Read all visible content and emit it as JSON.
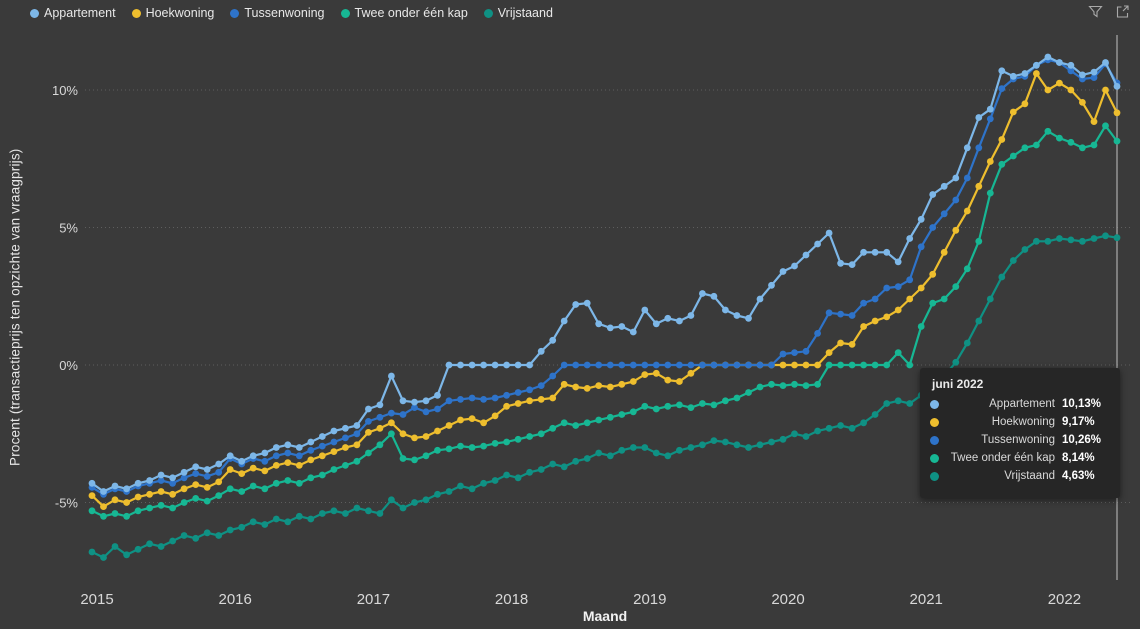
{
  "theme": {
    "background": "#3a3a3a",
    "grid_color": "#5e5e5e",
    "axis_text_color": "#d8d8d8",
    "crosshair_color": "#c2c2c2",
    "tooltip_background": "#262626"
  },
  "visual_header": {
    "icons": [
      {
        "name": "filter-icon"
      },
      {
        "name": "focus-mode-icon"
      }
    ]
  },
  "legend": {
    "items": [
      {
        "label": "Appartement",
        "color": "#7db7e8"
      },
      {
        "label": "Hoekwoning",
        "color": "#eebe2e"
      },
      {
        "label": "Tussenwoning",
        "color": "#2e73c9"
      },
      {
        "label": "Twee onder één kap",
        "color": "#17b794"
      },
      {
        "label": "Vrijstaand",
        "color": "#0f9184"
      }
    ]
  },
  "chart_data": {
    "type": "line",
    "xlabel": "Maand",
    "ylabel": "Procent (transactieprijs ten opzichte van vraagprijs)",
    "x_unit": "month",
    "x_start": "2015-01",
    "x_end": "2022-06",
    "x_tick_labels": [
      "2015",
      "2016",
      "2017",
      "2018",
      "2019",
      "2020",
      "2021",
      "2022"
    ],
    "y_ticks": [
      {
        "value": 10,
        "label": "10%"
      },
      {
        "value": 5,
        "label": "5%"
      },
      {
        "value": 0,
        "label": "0%"
      },
      {
        "value": -5,
        "label": "-5%"
      }
    ],
    "ylim": [
      -7.8,
      12.0
    ],
    "grid": "dotted-horizontal",
    "legend_position": "top-left",
    "marker": "circle",
    "series": [
      {
        "name": "Appartement",
        "color": "#7db7e8",
        "values": [
          -4.3,
          -4.6,
          -4.4,
          -4.5,
          -4.3,
          -4.2,
          -4.0,
          -4.1,
          -3.9,
          -3.7,
          -3.8,
          -3.6,
          -3.3,
          -3.5,
          -3.3,
          -3.2,
          -3.0,
          -2.9,
          -3.0,
          -2.8,
          -2.6,
          -2.4,
          -2.3,
          -2.2,
          -1.6,
          -1.45,
          -0.4,
          -1.3,
          -1.35,
          -1.3,
          -1.1,
          0,
          0,
          0,
          0,
          0,
          0,
          0,
          0,
          0.5,
          0.9,
          1.6,
          2.2,
          2.25,
          1.5,
          1.35,
          1.4,
          1.2,
          2.0,
          1.5,
          1.7,
          1.6,
          1.8,
          2.6,
          2.5,
          2.0,
          1.8,
          1.7,
          2.4,
          2.9,
          3.4,
          3.6,
          4.0,
          4.4,
          4.8,
          3.7,
          3.65,
          4.1,
          4.1,
          4.1,
          3.75,
          4.6,
          5.3,
          6.2,
          6.5,
          6.8,
          7.9,
          9.0,
          9.3,
          10.7,
          10.5,
          10.6,
          10.9,
          11.2,
          11.0,
          10.9,
          10.55,
          10.65,
          11.0,
          10.13
        ]
      },
      {
        "name": "Hoekwoning",
        "color": "#eebe2e",
        "values": [
          -4.75,
          -5.15,
          -4.9,
          -5.0,
          -4.8,
          -4.7,
          -4.6,
          -4.7,
          -4.5,
          -4.35,
          -4.45,
          -4.25,
          -3.8,
          -3.95,
          -3.75,
          -3.85,
          -3.65,
          -3.55,
          -3.65,
          -3.45,
          -3.3,
          -3.15,
          -3.0,
          -2.9,
          -2.45,
          -2.3,
          -2.1,
          -2.5,
          -2.65,
          -2.6,
          -2.4,
          -2.2,
          -2.0,
          -1.95,
          -2.1,
          -1.85,
          -1.5,
          -1.4,
          -1.3,
          -1.25,
          -1.2,
          -0.7,
          -0.8,
          -0.85,
          -0.75,
          -0.8,
          -0.7,
          -0.6,
          -0.35,
          -0.3,
          -0.55,
          -0.6,
          -0.3,
          0,
          0,
          0,
          0,
          0,
          0,
          0,
          0,
          0,
          0,
          0,
          0.45,
          0.8,
          0.75,
          1.4,
          1.6,
          1.75,
          2.0,
          2.4,
          2.8,
          3.3,
          4.1,
          4.9,
          5.6,
          6.5,
          7.4,
          8.2,
          9.2,
          9.5,
          10.6,
          10.0,
          10.25,
          10.0,
          9.55,
          8.85,
          10.0,
          9.17
        ]
      },
      {
        "name": "Tussenwoning",
        "color": "#2e73c9",
        "values": [
          -4.45,
          -4.7,
          -4.5,
          -4.6,
          -4.4,
          -4.3,
          -4.2,
          -4.3,
          -4.1,
          -3.95,
          -4.05,
          -3.9,
          -3.4,
          -3.6,
          -3.4,
          -3.5,
          -3.3,
          -3.2,
          -3.3,
          -3.1,
          -2.95,
          -2.8,
          -2.65,
          -2.5,
          -2.05,
          -1.9,
          -1.75,
          -1.8,
          -1.55,
          -1.7,
          -1.6,
          -1.3,
          -1.25,
          -1.2,
          -1.25,
          -1.2,
          -1.1,
          -1.0,
          -0.9,
          -0.75,
          -0.4,
          0,
          0,
          0,
          0,
          0,
          0,
          0,
          0,
          0,
          0,
          0,
          0,
          0,
          0,
          0,
          0,
          0,
          0,
          0,
          0.4,
          0.45,
          0.5,
          1.15,
          1.9,
          1.85,
          1.8,
          2.25,
          2.4,
          2.8,
          2.85,
          3.1,
          4.3,
          5.0,
          5.5,
          6.0,
          6.8,
          7.9,
          8.95,
          10.05,
          10.4,
          10.5,
          10.9,
          11.1,
          11.0,
          10.7,
          10.4,
          10.45,
          10.95,
          10.26
        ]
      },
      {
        "name": "Twee onder één kap",
        "color": "#17b794",
        "values": [
          -5.3,
          -5.5,
          -5.4,
          -5.5,
          -5.3,
          -5.2,
          -5.1,
          -5.2,
          -5.0,
          -4.85,
          -4.95,
          -4.75,
          -4.5,
          -4.6,
          -4.4,
          -4.5,
          -4.3,
          -4.2,
          -4.3,
          -4.1,
          -4.0,
          -3.8,
          -3.65,
          -3.5,
          -3.2,
          -2.9,
          -2.5,
          -3.4,
          -3.45,
          -3.3,
          -3.1,
          -3.05,
          -2.95,
          -3.0,
          -2.95,
          -2.85,
          -2.8,
          -2.7,
          -2.6,
          -2.5,
          -2.3,
          -2.1,
          -2.2,
          -2.1,
          -2.0,
          -1.9,
          -1.8,
          -1.7,
          -1.5,
          -1.6,
          -1.5,
          -1.45,
          -1.55,
          -1.4,
          -1.45,
          -1.3,
          -1.2,
          -1.0,
          -0.8,
          -0.7,
          -0.75,
          -0.7,
          -0.75,
          -0.7,
          0,
          0,
          0,
          0,
          0,
          0,
          0.45,
          0,
          1.4,
          2.25,
          2.4,
          2.85,
          3.5,
          4.5,
          6.25,
          7.3,
          7.6,
          7.9,
          8.0,
          8.5,
          8.25,
          8.1,
          7.9,
          8.0,
          8.7,
          8.14
        ]
      },
      {
        "name": "Vrijstaand",
        "color": "#0f9184",
        "values": [
          -6.8,
          -7.0,
          -6.6,
          -6.9,
          -6.7,
          -6.5,
          -6.6,
          -6.4,
          -6.2,
          -6.3,
          -6.1,
          -6.2,
          -6.0,
          -5.9,
          -5.7,
          -5.8,
          -5.6,
          -5.7,
          -5.5,
          -5.6,
          -5.4,
          -5.3,
          -5.4,
          -5.2,
          -5.3,
          -5.4,
          -4.9,
          -5.2,
          -5.0,
          -4.9,
          -4.7,
          -4.6,
          -4.4,
          -4.5,
          -4.3,
          -4.2,
          -4.0,
          -4.1,
          -3.9,
          -3.8,
          -3.6,
          -3.7,
          -3.5,
          -3.4,
          -3.2,
          -3.3,
          -3.1,
          -3.0,
          -3.0,
          -3.2,
          -3.3,
          -3.1,
          -3.0,
          -2.9,
          -2.75,
          -2.8,
          -2.9,
          -3.0,
          -2.9,
          -2.8,
          -2.7,
          -2.5,
          -2.6,
          -2.4,
          -2.3,
          -2.2,
          -2.3,
          -2.1,
          -1.8,
          -1.4,
          -1.3,
          -1.4,
          -1.1,
          -0.8,
          -0.4,
          0.1,
          0.8,
          1.6,
          2.4,
          3.2,
          3.8,
          4.2,
          4.5,
          4.5,
          4.6,
          4.55,
          4.5,
          4.6,
          4.7,
          4.63
        ]
      }
    ]
  },
  "tooltip": {
    "title": "juni 2022",
    "rows": [
      {
        "label": "Appartement",
        "value": "10,13%",
        "color": "#7db7e8"
      },
      {
        "label": "Hoekwoning",
        "value": "9,17%",
        "color": "#eebe2e"
      },
      {
        "label": "Tussenwoning",
        "value": "10,26%",
        "color": "#2e73c9"
      },
      {
        "label": "Twee onder één kap",
        "value": "8,14%",
        "color": "#17b794"
      },
      {
        "label": "Vrijstaand",
        "value": "4,63%",
        "color": "#0f9184"
      }
    ]
  }
}
